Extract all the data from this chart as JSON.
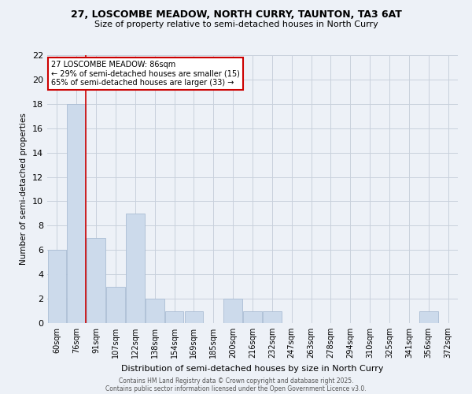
{
  "title1": "27, LOSCOMBE MEADOW, NORTH CURRY, TAUNTON, TA3 6AT",
  "title2": "Size of property relative to semi-detached houses in North Curry",
  "xlabel": "Distribution of semi-detached houses by size in North Curry",
  "ylabel": "Number of semi-detached properties",
  "categories": [
    "60sqm",
    "76sqm",
    "91sqm",
    "107sqm",
    "122sqm",
    "138sqm",
    "154sqm",
    "169sqm",
    "185sqm",
    "200sqm",
    "216sqm",
    "232sqm",
    "247sqm",
    "263sqm",
    "278sqm",
    "294sqm",
    "310sqm",
    "325sqm",
    "341sqm",
    "356sqm",
    "372sqm"
  ],
  "values": [
    6,
    18,
    7,
    3,
    9,
    2,
    1,
    1,
    0,
    2,
    1,
    1,
    0,
    0,
    0,
    0,
    0,
    0,
    0,
    1,
    0
  ],
  "bar_color": "#ccdaeb",
  "bar_edge_color": "#aabdd4",
  "grid_color": "#c8d0dc",
  "background_color": "#edf1f7",
  "marker_bin_index": 1,
  "marker_color": "#cc0000",
  "annotation_title": "27 LOSCOMBE MEADOW: 86sqm",
  "annotation_line1": "← 29% of semi-detached houses are smaller (15)",
  "annotation_line2": "65% of semi-detached houses are larger (33) →",
  "annotation_box_color": "#ffffff",
  "annotation_box_edge": "#cc0000",
  "ylim": [
    0,
    22
  ],
  "yticks": [
    0,
    2,
    4,
    6,
    8,
    10,
    12,
    14,
    16,
    18,
    20,
    22
  ],
  "footer1": "Contains HM Land Registry data © Crown copyright and database right 2025.",
  "footer2": "Contains public sector information licensed under the Open Government Licence v3.0."
}
